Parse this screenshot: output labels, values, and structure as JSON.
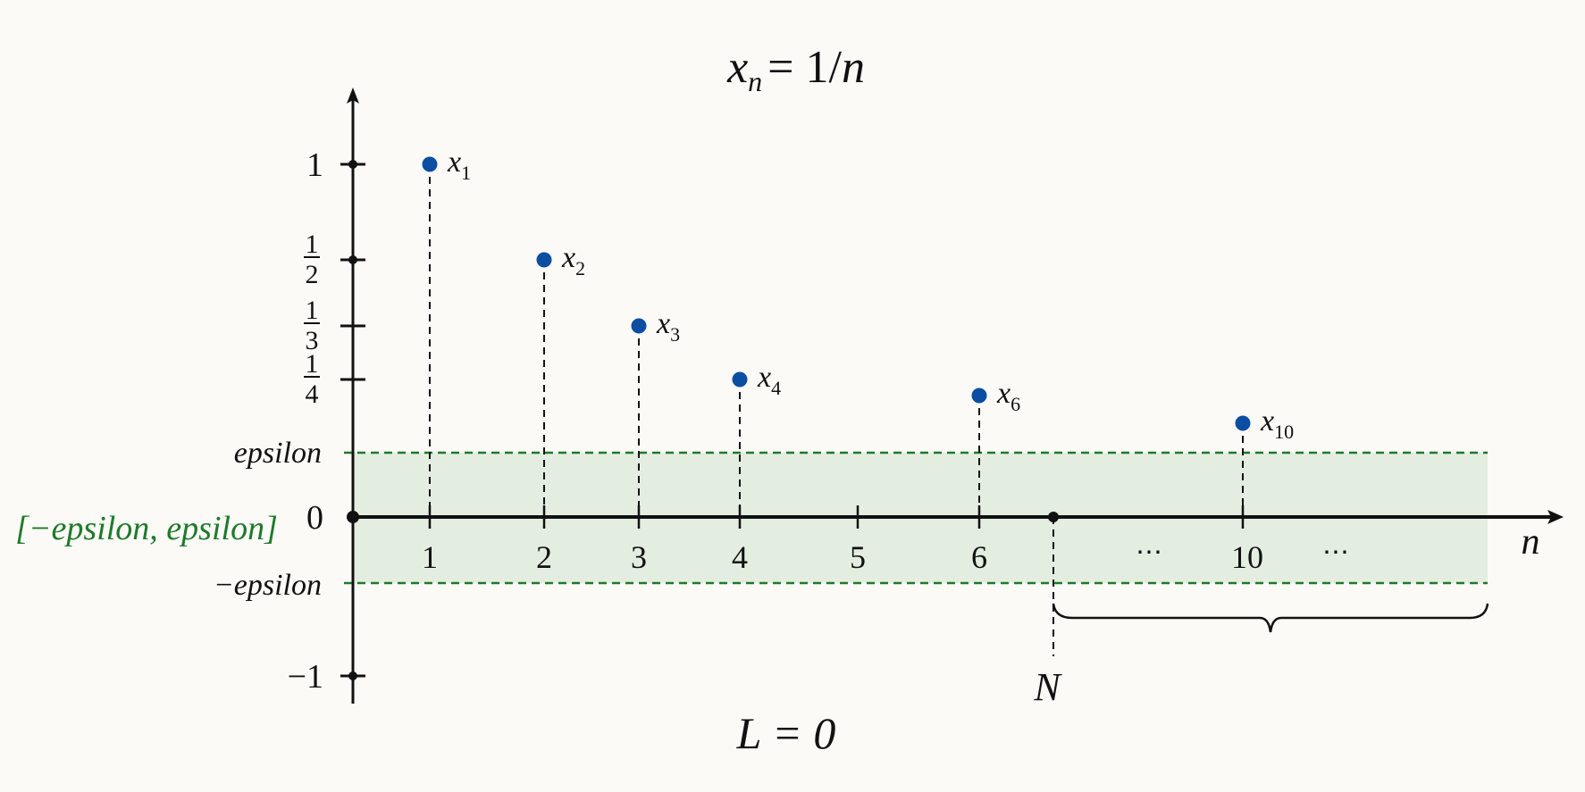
{
  "chart_data": {
    "type": "scatter",
    "title": "x_n = 1/n",
    "title_parts": {
      "var": "x",
      "sub": "n",
      "rhs": "= 1/",
      "n": "n"
    },
    "footer": "L = 0",
    "xlabel": "n",
    "x_ticks": [
      "1",
      "2",
      "3",
      "4",
      "5",
      "6",
      "10"
    ],
    "x_tick_values": [
      1,
      2,
      3,
      4,
      5,
      6,
      10
    ],
    "x_ellipsis": "⋯",
    "y_ticks": [
      {
        "label": "1",
        "value": 1
      },
      {
        "label_num": "1",
        "label_den": "2",
        "value": 0.5
      },
      {
        "label_num": "1",
        "label_den": "3",
        "value": 0.3333
      },
      {
        "label_num": "1",
        "label_den": "4",
        "value": 0.25
      },
      {
        "label": "0",
        "value": 0
      },
      {
        "label": "−1",
        "value": -1
      }
    ],
    "points": [
      {
        "n": 1,
        "y": 1,
        "label": "x",
        "sub": "1"
      },
      {
        "n": 2,
        "y": 0.5,
        "label": "x",
        "sub": "2"
      },
      {
        "n": 3,
        "y": 0.3333,
        "label": "x",
        "sub": "3"
      },
      {
        "n": 4,
        "y": 0.25,
        "label": "x",
        "sub": "4"
      },
      {
        "n": 6,
        "y": 0.1667,
        "label": "x",
        "sub": "6"
      },
      {
        "n": 10,
        "y": 0.1,
        "label": "x",
        "sub": "10"
      }
    ],
    "band": {
      "upper_label": "epsilon",
      "lower_label": "−epsilon",
      "interval_label": "[−epsilon, epsilon]"
    },
    "N_label": "N",
    "colors": {
      "points": "#0b4ea2",
      "band_fill": "#e3eee0",
      "band_line": "#1e7a2a",
      "interval_label": "#1e7a2a",
      "axis": "#111111"
    },
    "grid": false,
    "legend": "none"
  }
}
